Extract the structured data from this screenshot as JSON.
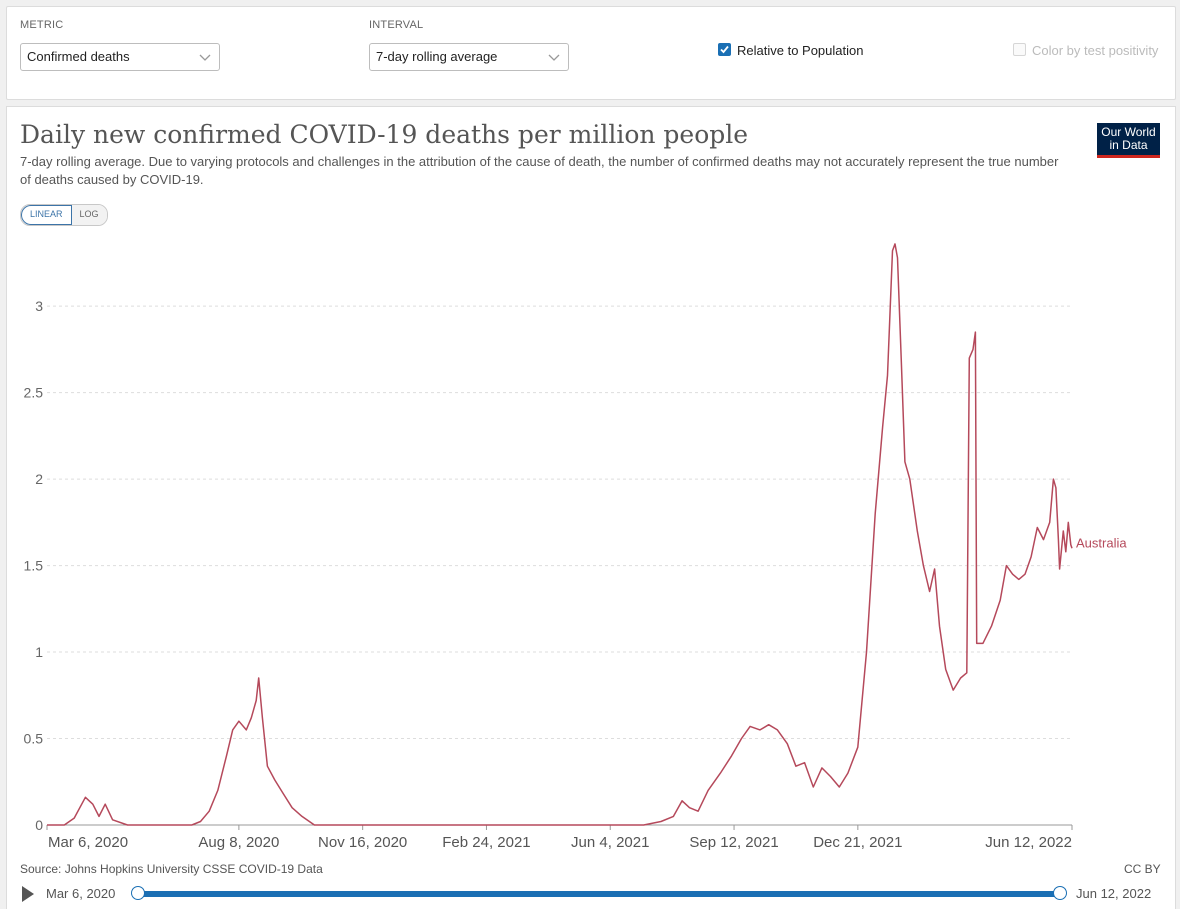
{
  "controls": {
    "metric_label": "METRIC",
    "metric_value": "Confirmed deaths",
    "interval_label": "INTERVAL",
    "interval_value": "7-day rolling average",
    "relative_label": "Relative to Population",
    "relative_checked": true,
    "positivity_label": "Color by test positivity",
    "positivity_checked": false
  },
  "chart": {
    "title": "Daily new confirmed COVID-19 deaths per million people",
    "subtitle": "7-day rolling average. Due to varying protocols and challenges in the attribution of the cause of death, the number of confirmed deaths may not accurately represent the true number of deaths caused by COVID-19.",
    "logo_line1": "Our World",
    "logo_line2": "in Data",
    "scale_linear": "LINEAR",
    "scale_log": "LOG",
    "source": "Source: Johns Hopkins University CSSE COVID-19 Data",
    "license": "CC BY"
  },
  "timeline": {
    "start": "Mar 6, 2020",
    "end": "Jun 12, 2022"
  },
  "colors": {
    "series": "#b5495b",
    "grid": "#dddddd",
    "accent": "#1a6fb4"
  },
  "chart_data": {
    "type": "line",
    "y_ticks": [
      "0",
      "0.5",
      "1",
      "1.5",
      "2",
      "2.5",
      "3"
    ],
    "x_ticks": [
      "Mar 6, 2020",
      "Aug 8, 2020",
      "Nov 16, 2020",
      "Feb 24, 2021",
      "Jun 4, 2021",
      "Sep 12, 2021",
      "Dec 21, 2021",
      "Jun 12, 2022"
    ],
    "x_tick_dates": [
      "2020-03-06",
      "2020-08-08",
      "2020-11-16",
      "2021-02-24",
      "2021-06-04",
      "2021-09-12",
      "2021-12-21",
      "2022-06-12"
    ],
    "ylim": [
      0,
      3.4
    ],
    "xlim": [
      "2020-03-06",
      "2022-06-12"
    ],
    "grid": "horizontal dashed",
    "series": [
      {
        "name": "Australia",
        "points": [
          [
            "2020-03-06",
            0.0
          ],
          [
            "2020-03-20",
            0.0
          ],
          [
            "2020-03-28",
            0.04
          ],
          [
            "2020-04-06",
            0.16
          ],
          [
            "2020-04-12",
            0.12
          ],
          [
            "2020-04-17",
            0.05
          ],
          [
            "2020-04-22",
            0.12
          ],
          [
            "2020-04-28",
            0.03
          ],
          [
            "2020-05-10",
            0.0
          ],
          [
            "2020-06-01",
            0.0
          ],
          [
            "2020-07-01",
            0.0
          ],
          [
            "2020-07-08",
            0.02
          ],
          [
            "2020-07-15",
            0.08
          ],
          [
            "2020-07-22",
            0.2
          ],
          [
            "2020-07-29",
            0.4
          ],
          [
            "2020-08-03",
            0.55
          ],
          [
            "2020-08-08",
            0.6
          ],
          [
            "2020-08-14",
            0.55
          ],
          [
            "2020-08-18",
            0.62
          ],
          [
            "2020-08-22",
            0.72
          ],
          [
            "2020-08-24",
            0.85
          ],
          [
            "2020-08-27",
            0.62
          ],
          [
            "2020-08-31",
            0.34
          ],
          [
            "2020-09-06",
            0.26
          ],
          [
            "2020-09-13",
            0.18
          ],
          [
            "2020-09-20",
            0.1
          ],
          [
            "2020-09-28",
            0.05
          ],
          [
            "2020-10-08",
            0.0
          ],
          [
            "2021-01-01",
            0.0
          ],
          [
            "2021-03-01",
            0.0
          ],
          [
            "2021-05-01",
            0.0
          ],
          [
            "2021-07-01",
            0.0
          ],
          [
            "2021-07-15",
            0.02
          ],
          [
            "2021-07-25",
            0.05
          ],
          [
            "2021-08-01",
            0.14
          ],
          [
            "2021-08-07",
            0.1
          ],
          [
            "2021-08-14",
            0.08
          ],
          [
            "2021-08-22",
            0.2
          ],
          [
            "2021-09-01",
            0.3
          ],
          [
            "2021-09-10",
            0.4
          ],
          [
            "2021-09-18",
            0.5
          ],
          [
            "2021-09-25",
            0.57
          ],
          [
            "2021-10-03",
            0.55
          ],
          [
            "2021-10-10",
            0.58
          ],
          [
            "2021-10-17",
            0.55
          ],
          [
            "2021-10-25",
            0.47
          ],
          [
            "2021-11-01",
            0.34
          ],
          [
            "2021-11-08",
            0.36
          ],
          [
            "2021-11-15",
            0.22
          ],
          [
            "2021-11-22",
            0.33
          ],
          [
            "2021-11-29",
            0.28
          ],
          [
            "2021-12-06",
            0.22
          ],
          [
            "2021-12-13",
            0.3
          ],
          [
            "2021-12-21",
            0.45
          ],
          [
            "2021-12-28",
            1.0
          ],
          [
            "2022-01-04",
            1.8
          ],
          [
            "2022-01-10",
            2.3
          ],
          [
            "2022-01-14",
            2.6
          ],
          [
            "2022-01-18",
            3.32
          ],
          [
            "2022-01-20",
            3.36
          ],
          [
            "2022-01-22",
            3.28
          ],
          [
            "2022-01-25",
            2.7
          ],
          [
            "2022-01-28",
            2.1
          ],
          [
            "2022-02-01",
            2.0
          ],
          [
            "2022-02-07",
            1.7
          ],
          [
            "2022-02-12",
            1.5
          ],
          [
            "2022-02-17",
            1.35
          ],
          [
            "2022-02-21",
            1.48
          ],
          [
            "2022-02-25",
            1.15
          ],
          [
            "2022-03-02",
            0.9
          ],
          [
            "2022-03-08",
            0.78
          ],
          [
            "2022-03-14",
            0.85
          ],
          [
            "2022-03-19",
            0.88
          ],
          [
            "2022-03-21",
            2.7
          ],
          [
            "2022-03-24",
            2.75
          ],
          [
            "2022-03-26",
            2.85
          ],
          [
            "2022-03-27",
            1.05
          ],
          [
            "2022-04-01",
            1.05
          ],
          [
            "2022-04-08",
            1.15
          ],
          [
            "2022-04-15",
            1.3
          ],
          [
            "2022-04-20",
            1.5
          ],
          [
            "2022-04-25",
            1.45
          ],
          [
            "2022-04-30",
            1.42
          ],
          [
            "2022-05-05",
            1.45
          ],
          [
            "2022-05-10",
            1.55
          ],
          [
            "2022-05-15",
            1.72
          ],
          [
            "2022-05-20",
            1.65
          ],
          [
            "2022-05-25",
            1.75
          ],
          [
            "2022-05-28",
            2.0
          ],
          [
            "2022-05-30",
            1.95
          ],
          [
            "2022-06-01",
            1.65
          ],
          [
            "2022-06-02",
            1.48
          ],
          [
            "2022-06-05",
            1.7
          ],
          [
            "2022-06-07",
            1.58
          ],
          [
            "2022-06-09",
            1.75
          ],
          [
            "2022-06-11",
            1.62
          ],
          [
            "2022-06-12",
            1.6
          ]
        ]
      }
    ]
  }
}
